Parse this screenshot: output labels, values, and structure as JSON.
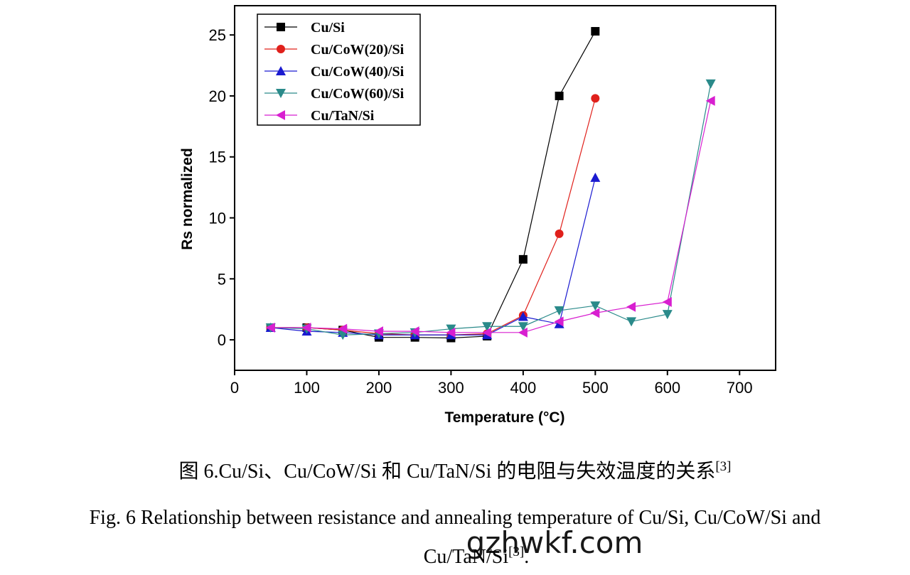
{
  "chart_data": {
    "type": "line",
    "x_label": "Temperature (°C)",
    "y_label": "Rs normalized",
    "xlim": [
      0,
      750
    ],
    "ylim": [
      -2.5,
      27.4
    ],
    "xticks": [
      0,
      100,
      200,
      300,
      400,
      500,
      600,
      700
    ],
    "yticks": [
      0,
      5,
      10,
      15,
      20,
      25
    ],
    "legend": "upper left",
    "series": [
      {
        "name": "Cu/Si",
        "color": "#000000",
        "marker": "square",
        "x": [
          50,
          100,
          150,
          200,
          250,
          300,
          350,
          400,
          450,
          500
        ],
        "values": [
          1.0,
          1.0,
          0.8,
          0.2,
          0.2,
          0.15,
          0.3,
          6.6,
          20.0,
          25.3
        ]
      },
      {
        "name": "Cu/CoW(20)/Si",
        "color": "#e0201b",
        "marker": "circle",
        "x": [
          50,
          100,
          150,
          200,
          250,
          300,
          350,
          400,
          450,
          500
        ],
        "values": [
          1.0,
          1.0,
          0.8,
          0.5,
          0.4,
          0.4,
          0.5,
          2.0,
          8.7,
          19.8
        ]
      },
      {
        "name": "Cu/CoW(40)/Si",
        "color": "#1a1ad0",
        "marker": "triangle-up",
        "x": [
          50,
          100,
          150,
          200,
          250,
          300,
          350,
          400,
          450,
          500
        ],
        "values": [
          1.0,
          0.7,
          0.6,
          0.4,
          0.4,
          0.4,
          0.4,
          1.9,
          1.3,
          13.3
        ]
      },
      {
        "name": "Cu/CoW(60)/Si",
        "color": "#2a8a8a",
        "marker": "triangle-down",
        "x": [
          50,
          100,
          150,
          200,
          250,
          300,
          350,
          400,
          450,
          500,
          550,
          600,
          660
        ],
        "values": [
          1.0,
          0.9,
          0.4,
          0.5,
          0.6,
          0.9,
          1.1,
          1.1,
          2.4,
          2.8,
          1.5,
          2.1,
          21.0
        ]
      },
      {
        "name": "Cu/TaN/Si",
        "color": "#d81fd0",
        "marker": "triangle-left",
        "x": [
          50,
          100,
          150,
          200,
          250,
          300,
          350,
          400,
          450,
          500,
          550,
          600,
          660
        ],
        "values": [
          1.0,
          1.0,
          0.9,
          0.7,
          0.7,
          0.6,
          0.6,
          0.6,
          1.5,
          2.2,
          2.7,
          3.1,
          19.6
        ]
      }
    ]
  },
  "captions": {
    "cn": "图 6.Cu/Si、Cu/CoW/Si  和  Cu/TaN/Si 的电阻与失效温度的关系",
    "cn_ref": "[3]",
    "en_line1": "Fig. 6    Relationship between resistance and annealing temperature of Cu/Si, Cu/CoW/Si and",
    "en_line2": "Cu/TaN/Si",
    "en_ref": "[3]",
    "en_end": "."
  },
  "watermark": "gzhwkf.com"
}
